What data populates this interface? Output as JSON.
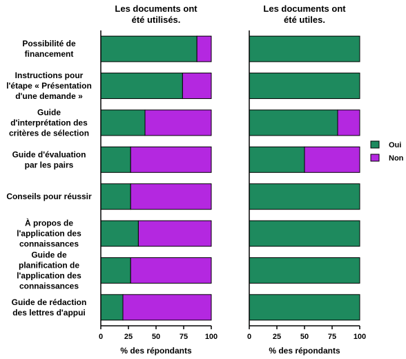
{
  "chart_data": {
    "type": "bar",
    "orientation": "horizontal",
    "stacked": true,
    "categories": [
      [
        "Possibilité de",
        "financement"
      ],
      [
        "Instructions pour",
        "l'étape « Présentation",
        "d'une demande »"
      ],
      [
        "Guide",
        "d'interprétation des",
        "critères de sélection"
      ],
      [
        "Guide d'évaluation",
        "par les pairs"
      ],
      [
        "Conseils pour réussir"
      ],
      [
        "À propos de",
        "l'application des",
        "connaissances"
      ],
      [
        "Guide de",
        "planification de",
        "l'application des",
        "connaissances"
      ],
      [
        "Guide de rédaction",
        "des lettres d'appui"
      ]
    ],
    "legend": {
      "position": "right",
      "items": [
        {
          "label": "Oui",
          "color": "#1e8a5e"
        },
        {
          "label": "Non",
          "color": "#b428e0"
        }
      ]
    },
    "panels": [
      {
        "title": [
          "Les documents ont",
          "été utilisés."
        ],
        "xlabel": "% des répondants",
        "xlim": [
          0,
          100
        ],
        "xticks": [
          "0",
          "25",
          "50",
          "75",
          "100"
        ],
        "series": [
          {
            "name": "Oui",
            "values": [
              87,
              74,
              40,
              27,
              27,
              34,
              27,
              20
            ]
          },
          {
            "name": "Non",
            "values": [
              13,
              26,
              60,
              73,
              73,
              66,
              73,
              80
            ]
          }
        ]
      },
      {
        "title": [
          "Les documents ont",
          "été utiles."
        ],
        "xlabel": "% des répondants",
        "xlim": [
          0,
          100
        ],
        "xticks": [
          "0",
          "25",
          "50",
          "75",
          "100"
        ],
        "series": [
          {
            "name": "Oui",
            "values": [
              100,
              100,
              80,
              50,
              100,
              100,
              100,
              100
            ]
          },
          {
            "name": "Non",
            "values": [
              0,
              0,
              20,
              50,
              0,
              0,
              0,
              0
            ]
          }
        ]
      }
    ]
  }
}
